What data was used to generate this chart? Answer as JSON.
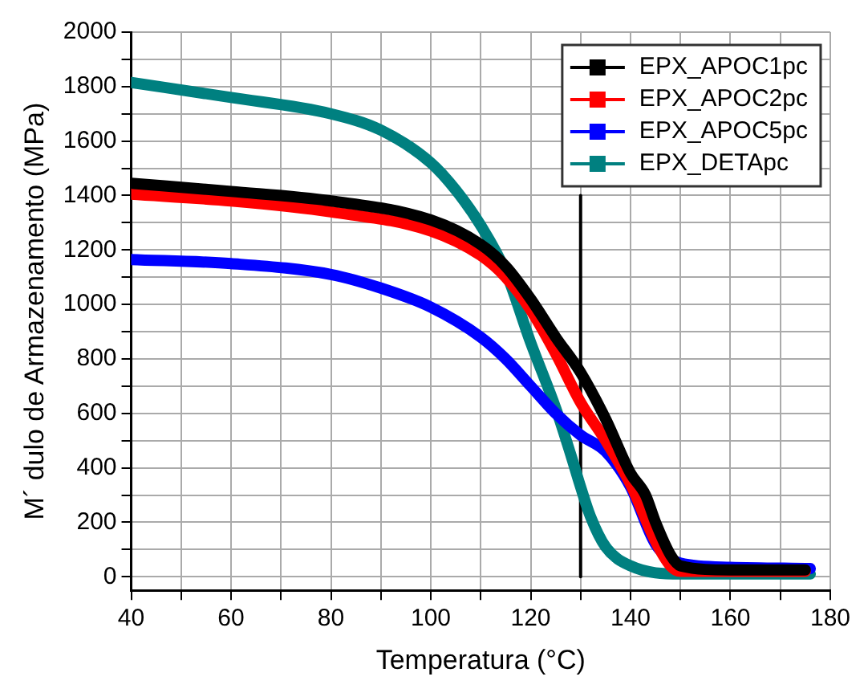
{
  "chart_data": {
    "type": "line",
    "xlabel": "Temperatura (°C)",
    "ylabel": "M´ dulo de Armazenamento (MPa)",
    "xlim": [
      40,
      180
    ],
    "ylim": [
      -50,
      2000
    ],
    "xticks": [
      40,
      {
        "value": 50,
        "label": null
      },
      60,
      {
        "value": 70,
        "label": null
      },
      80,
      {
        "value": 90,
        "label": null
      },
      100,
      {
        "value": 110,
        "label": null
      },
      120,
      {
        "value": 130,
        "label": null
      },
      140,
      {
        "value": 150,
        "label": null
      },
      160,
      {
        "value": 170,
        "label": null
      },
      180
    ],
    "yticks": [
      0,
      {
        "value": 100,
        "label": null
      },
      200,
      {
        "value": 300,
        "label": null
      },
      400,
      {
        "value": 500,
        "label": null
      },
      600,
      {
        "value": 700,
        "label": null
      },
      800,
      {
        "value": 900,
        "label": null
      },
      1000,
      {
        "value": 1100,
        "label": null
      },
      1200,
      {
        "value": 1300,
        "label": null
      },
      1400,
      {
        "value": 1500,
        "label": null
      },
      1600,
      {
        "value": 1700,
        "label": null
      },
      1800,
      {
        "value": 1900,
        "label": null
      },
      2000
    ],
    "grid": true,
    "legend": "top right",
    "line_style": "solid",
    "series": [
      {
        "name": "EPX_APOC1pc",
        "color": "#000000",
        "x": [
          40,
          60,
          80,
          100,
          110,
          115,
          120,
          125,
          130,
          135,
          140,
          143,
          145,
          148,
          150,
          160,
          175
        ],
        "values": [
          1445,
          1415,
          1380,
          1310,
          1220,
          1140,
          1020,
          880,
          750,
          580,
          380,
          300,
          200,
          80,
          40,
          25,
          25
        ]
      },
      {
        "name": "EPX_APOC2pc",
        "color": "#ff0000",
        "x": [
          40,
          60,
          80,
          100,
          110,
          115,
          120,
          125,
          130,
          135,
          140,
          145,
          148,
          150,
          175
        ],
        "values": [
          1405,
          1380,
          1340,
          1270,
          1180,
          1100,
          980,
          820,
          640,
          500,
          340,
          130,
          40,
          20,
          20
        ]
      },
      {
        "name": "EPX_APOC5pc",
        "color": "#0000ff",
        "x": [
          40,
          60,
          80,
          90,
          100,
          110,
          115,
          120,
          125,
          130,
          135,
          140,
          145,
          150,
          160,
          176
        ],
        "values": [
          1165,
          1150,
          1110,
          1060,
          990,
          880,
          800,
          700,
          600,
          520,
          460,
          330,
          120,
          50,
          35,
          30
        ]
      },
      {
        "name": "EPX_DETApc",
        "color": "#008080",
        "x": [
          40,
          60,
          80,
          90,
          100,
          105,
          110,
          115,
          120,
          125,
          128,
          130,
          132,
          135,
          140,
          150,
          176
        ],
        "values": [
          1815,
          1760,
          1700,
          1640,
          1520,
          1420,
          1290,
          1120,
          860,
          620,
          450,
          330,
          220,
          110,
          40,
          10,
          10
        ]
      },
      {
        "type": "line",
        "color": "#000000",
        "x": [
          130,
          130
        ],
        "values": [
          0,
          1400
        ]
      }
    ]
  }
}
